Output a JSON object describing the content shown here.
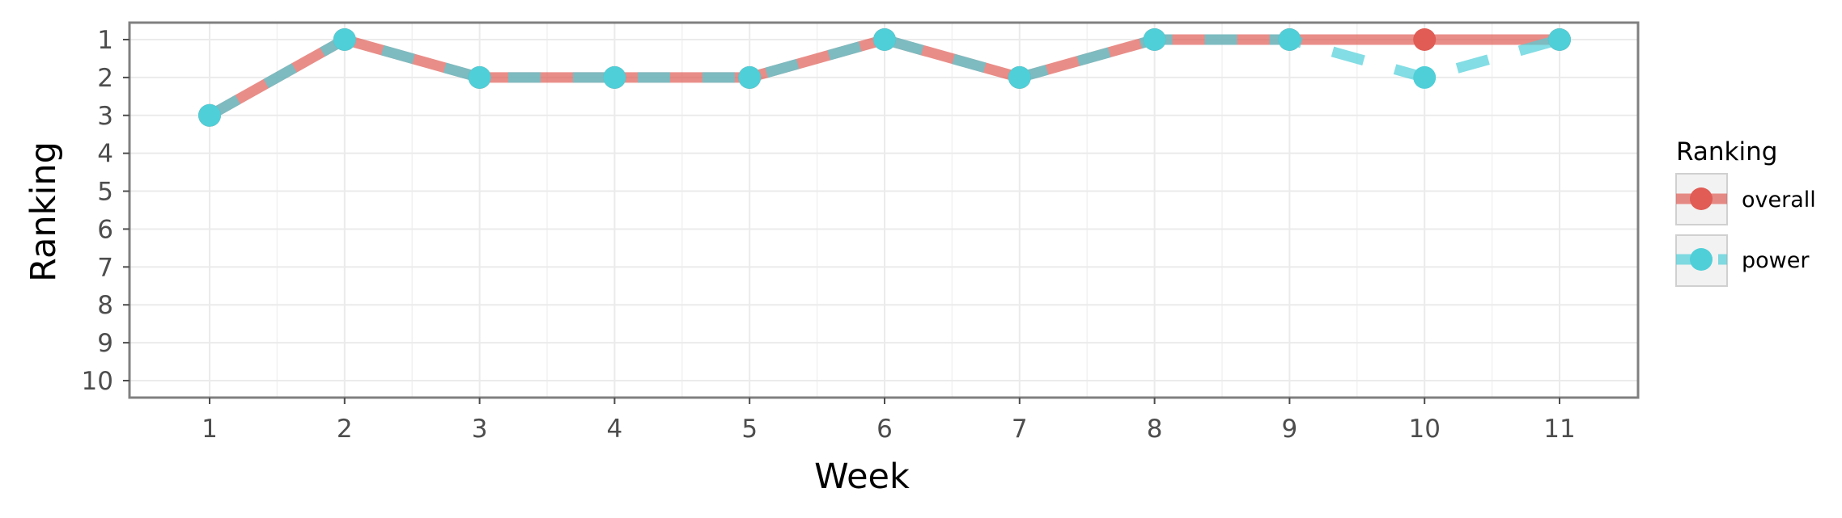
{
  "chart_data": {
    "type": "line",
    "xlabel": "Week",
    "ylabel": "Ranking",
    "x": [
      1,
      2,
      3,
      4,
      5,
      6,
      7,
      8,
      9,
      10,
      11
    ],
    "x_ticks": [
      "1",
      "2",
      "3",
      "4",
      "5",
      "6",
      "7",
      "8",
      "9",
      "10",
      "11"
    ],
    "y_ticks": [
      "1",
      "2",
      "3",
      "4",
      "5",
      "6",
      "7",
      "8",
      "9",
      "10"
    ],
    "xlim": [
      0.4,
      11.6
    ],
    "ylim": [
      1,
      10
    ],
    "y_reversed": true,
    "grid": true,
    "legend": {
      "title": "Ranking",
      "placement": "right"
    },
    "series": [
      {
        "name": "overall",
        "values": [
          3,
          1,
          2,
          2,
          2,
          1,
          2,
          1,
          1,
          1,
          1
        ],
        "color": "#e05c55",
        "line_style": "solid"
      },
      {
        "name": "power",
        "values": [
          3,
          1,
          2,
          2,
          2,
          1,
          2,
          1,
          1,
          2,
          1
        ],
        "color": "#4fcfd8",
        "line_style": "dashed"
      }
    ]
  }
}
